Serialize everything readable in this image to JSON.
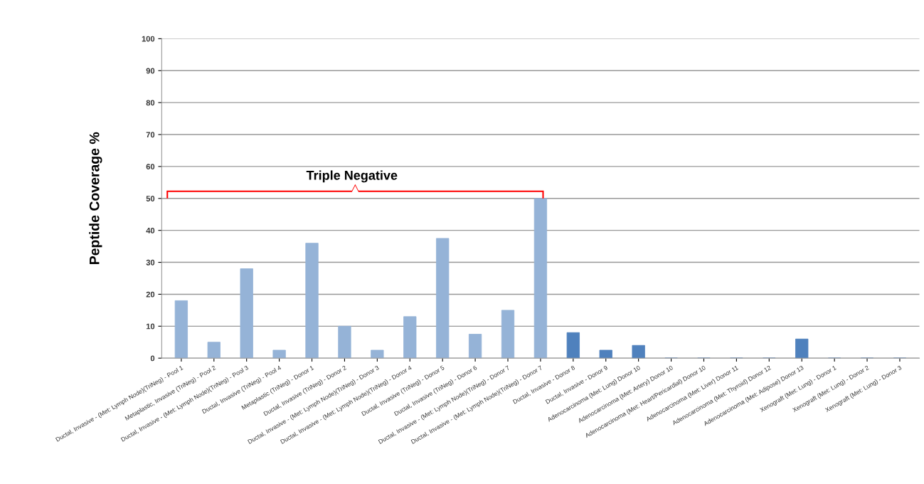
{
  "chart_data": {
    "type": "bar",
    "categories": [
      "Ductal, Invasive - (Met: Lymph Node)(TriNeg) - Pool 1",
      "Metaplastic, Invasive (TriNeg) - Pool 2",
      "Ductal, Invasive - (Met: Lymph Node)(TriNeg) - Pool 3",
      "Ductal, Invasive (TriNeg) - Pool 4",
      "Metaplastic (TriNeg) - Donor 1",
      "Ductal, Invasive (TriNeg) - Donor 2",
      "Ductal, Invasive - (Met: Lymph Node)(TriNeg) - Donor 3",
      "Ductal, Invasive - (Met: Lymph Node)(TriNeg) - Donor 4",
      "Ductal, Invasive (TriNeg) - Donor 5",
      "Ductal, Invasive (TriNeg) - Donor 6",
      "Ductal, Invasive - (Met: Lymph Node)(TriNeg) - Donor 7",
      "Ductal, Invasive - (Met: Lymph Node)(TriNeg) - Donor 7",
      "Ductal, Invasive - Donor 8",
      "Ductal, Invasive - Donor 9",
      "Adenocarcinoma (Met: Lung) Donor 10",
      "Adenocarcinoma (Met: Artery) Donor 10",
      "Adenocarcinoma (Met: Heart/Pericardial) Donor 10",
      "Adenocarcinoma (Met: Liver) Donor 11",
      "Adenocarcinoma (Met: Thyroid) Donor 12",
      "Adenocarcinoma (Met: Adipose) Donor 13",
      "Xenograft (Met: Lung) - Donor 1",
      "Xenograft (Met: Lung) - Donor 2",
      "Xenograft (Met: Lung) - Donor 3"
    ],
    "values": [
      18,
      5,
      28,
      2.5,
      36,
      10,
      2.5,
      13,
      37.5,
      7.5,
      15,
      50,
      8,
      2.5,
      4,
      0,
      0,
      0,
      0,
      6,
      0,
      0,
      0
    ],
    "colors": [
      "#95b3d7",
      "#95b3d7",
      "#95b3d7",
      "#95b3d7",
      "#95b3d7",
      "#95b3d7",
      "#95b3d7",
      "#95b3d7",
      "#95b3d7",
      "#95b3d7",
      "#95b3d7",
      "#95b3d7",
      "#4f81bd",
      "#4f81bd",
      "#4f81bd",
      "#4f81bd",
      "#4f81bd",
      "#4f81bd",
      "#4f81bd",
      "#4f81bd",
      "#4f81bd",
      "#4f81bd",
      "#4f81bd"
    ],
    "ylabel": "Peptide Coverage %",
    "ylim": [
      0,
      100
    ],
    "yticks": [
      0,
      10,
      20,
      30,
      40,
      50,
      60,
      70,
      80,
      90,
      100
    ],
    "grid": "y",
    "annotations": [
      "Triple Negative"
    ]
  }
}
